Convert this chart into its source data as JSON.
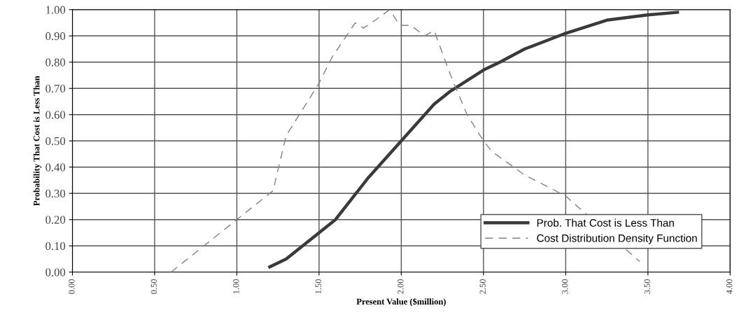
{
  "chart_data": {
    "type": "line",
    "xlabel": "Present Value ($million)",
    "ylabel": "Probability That Cost is Less Than",
    "xlim": [
      0,
      4
    ],
    "xticks": [
      {
        "value": 0,
        "label": "0.00"
      },
      {
        "value": 0.5,
        "label": "0.50"
      },
      {
        "value": 1,
        "label": "1.00"
      },
      {
        "value": 1.5,
        "label": "1.50"
      },
      {
        "value": 2,
        "label": "2.00"
      },
      {
        "value": 2.5,
        "label": "2.50"
      },
      {
        "value": 3,
        "label": "3.00"
      },
      {
        "value": 3.5,
        "label": "3.50"
      },
      {
        "value": 4,
        "label": "4.00"
      }
    ],
    "ylim": [
      0,
      1
    ],
    "yticks": [
      {
        "value": 0,
        "label": "0.00"
      },
      {
        "value": 0.1,
        "label": "0.10"
      },
      {
        "value": 0.2,
        "label": "0.20"
      },
      {
        "value": 0.3,
        "label": "0.30"
      },
      {
        "value": 0.4,
        "label": "0.40"
      },
      {
        "value": 0.5,
        "label": "0.50"
      },
      {
        "value": 0.6,
        "label": "0.60"
      },
      {
        "value": 0.7,
        "label": "0.70"
      },
      {
        "value": 0.8,
        "label": "0.80"
      },
      {
        "value": 0.9,
        "label": "0.90"
      },
      {
        "value": 1,
        "label": "1.00"
      }
    ],
    "grid": true,
    "legend": "bottom right",
    "marker": "none",
    "series": [
      {
        "name": "Prob. That Cost is Less Than",
        "color": "#3a3a3a",
        "line_style": "solid",
        "x": [
          1.2,
          1.3,
          1.4,
          1.5,
          1.6,
          1.7,
          1.8,
          1.9,
          2.0,
          2.1,
          2.2,
          2.3,
          2.35,
          2.5,
          2.6,
          2.75,
          3.0,
          3.25,
          3.5,
          3.68
        ],
        "values": [
          0.02,
          0.05,
          0.1,
          0.15,
          0.2,
          0.28,
          0.36,
          0.43,
          0.5,
          0.57,
          0.64,
          0.69,
          0.71,
          0.77,
          0.8,
          0.85,
          0.91,
          0.96,
          0.98,
          0.99
        ]
      },
      {
        "name": "Cost Distribution Density Function",
        "color": "#808080",
        "line_style": "dashed",
        "x": [
          0.6,
          1.0,
          1.22,
          1.3,
          1.5,
          1.58,
          1.72,
          1.77,
          1.82,
          1.93,
          1.99,
          2.06,
          2.14,
          2.2,
          2.3,
          2.4,
          2.5,
          2.55,
          2.75,
          3.0,
          3.45
        ],
        "values": [
          0.0,
          0.2,
          0.31,
          0.52,
          0.72,
          0.82,
          0.95,
          0.93,
          0.95,
          1.0,
          0.94,
          0.94,
          0.9,
          0.92,
          0.75,
          0.6,
          0.5,
          0.46,
          0.37,
          0.29,
          0.04
        ]
      }
    ]
  }
}
